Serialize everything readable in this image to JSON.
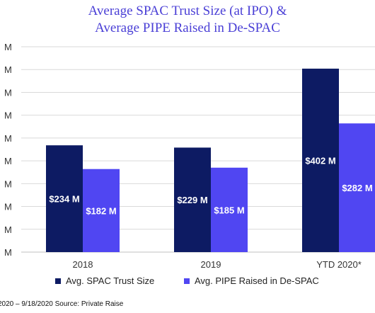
{
  "chart_data": {
    "type": "bar",
    "title_line1": "Average SPAC Trust Size (at IPO) &",
    "title_line2": "Average PIPE Raised in De-SPAC",
    "categories": [
      "2018",
      "2019",
      "YTD 2020*"
    ],
    "series": [
      {
        "name": "Avg. SPAC Trust Size",
        "values": [
          234,
          229,
          402
        ],
        "labels": [
          "$234 M",
          "$229 M",
          "$402 M"
        ],
        "color": "#0d1b63"
      },
      {
        "name": "Avg. PIPE Raised in De-SPAC",
        "values": [
          182,
          185,
          282
        ],
        "labels": [
          "$182 M",
          "$185 M",
          "$282 M"
        ],
        "color": "#5046f2"
      }
    ],
    "y_tick_label": "M",
    "ylim": [
      0,
      450
    ],
    "y_tick_step": 50,
    "grid": true,
    "legend_position": "bottom"
  },
  "footer": {
    "text": "2020 – 9/18/2020   Source: Private Raise"
  }
}
